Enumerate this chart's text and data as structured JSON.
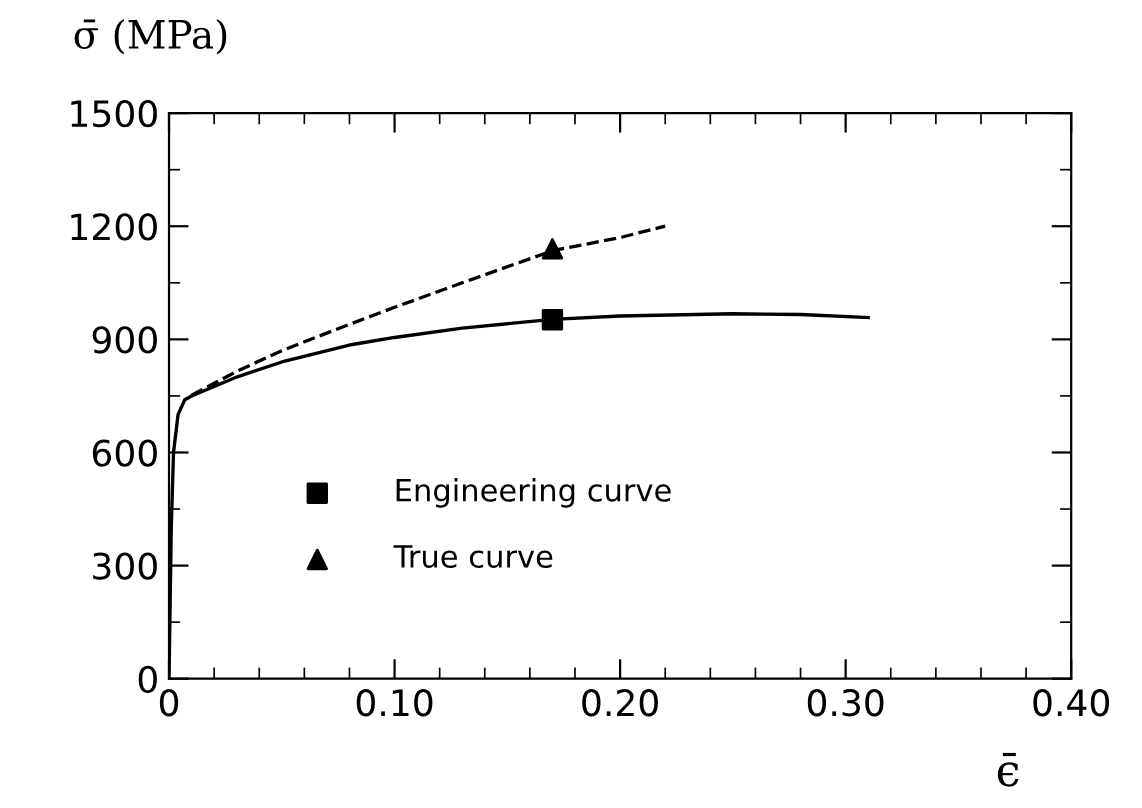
{
  "chart_data": {
    "type": "line",
    "xlabel": "ϵ̄",
    "ylabel": "σ̄ (MPa)",
    "xlim": [
      0,
      0.4
    ],
    "xticks": [
      {
        "value": 0,
        "label": "0"
      },
      {
        "value": 0.1,
        "label": "0.10"
      },
      {
        "value": 0.2,
        "label": "0.20"
      },
      {
        "value": 0.3,
        "label": "0.30"
      },
      {
        "value": 0.4,
        "label": "0.40"
      }
    ],
    "ylim": [
      0,
      1500
    ],
    "yticks": [
      0,
      300,
      600,
      900,
      1200,
      1500
    ],
    "grid": false,
    "legend": "bottom left",
    "series": [
      {
        "line_style": "solid",
        "color": "#000000",
        "x": [
          0,
          0.001,
          0.002,
          0.004,
          0.007,
          0.01,
          0.03,
          0.05,
          0.08,
          0.1,
          0.13,
          0.17,
          0.2,
          0.25,
          0.28,
          0.31
        ],
        "values": [
          0,
          400,
          600,
          700,
          740,
          750,
          800,
          840,
          885,
          905,
          930,
          953,
          962,
          968,
          966,
          958
        ]
      },
      {
        "line_style": "dashed",
        "color": "#000000",
        "x": [
          0.01,
          0.03,
          0.05,
          0.08,
          0.1,
          0.13,
          0.17,
          0.2,
          0.22
        ],
        "values": [
          752,
          815,
          870,
          940,
          985,
          1050,
          1135,
          1170,
          1200
        ]
      },
      {
        "type": "scatter",
        "name": "Engineering curve",
        "marker": "square",
        "color": "#000000",
        "x": [
          0.17
        ],
        "values": [
          952
        ]
      },
      {
        "type": "scatter",
        "name": "True curve",
        "marker": "triangle",
        "color": "#000000",
        "x": [
          0.17
        ],
        "values": [
          1140
        ]
      }
    ]
  }
}
